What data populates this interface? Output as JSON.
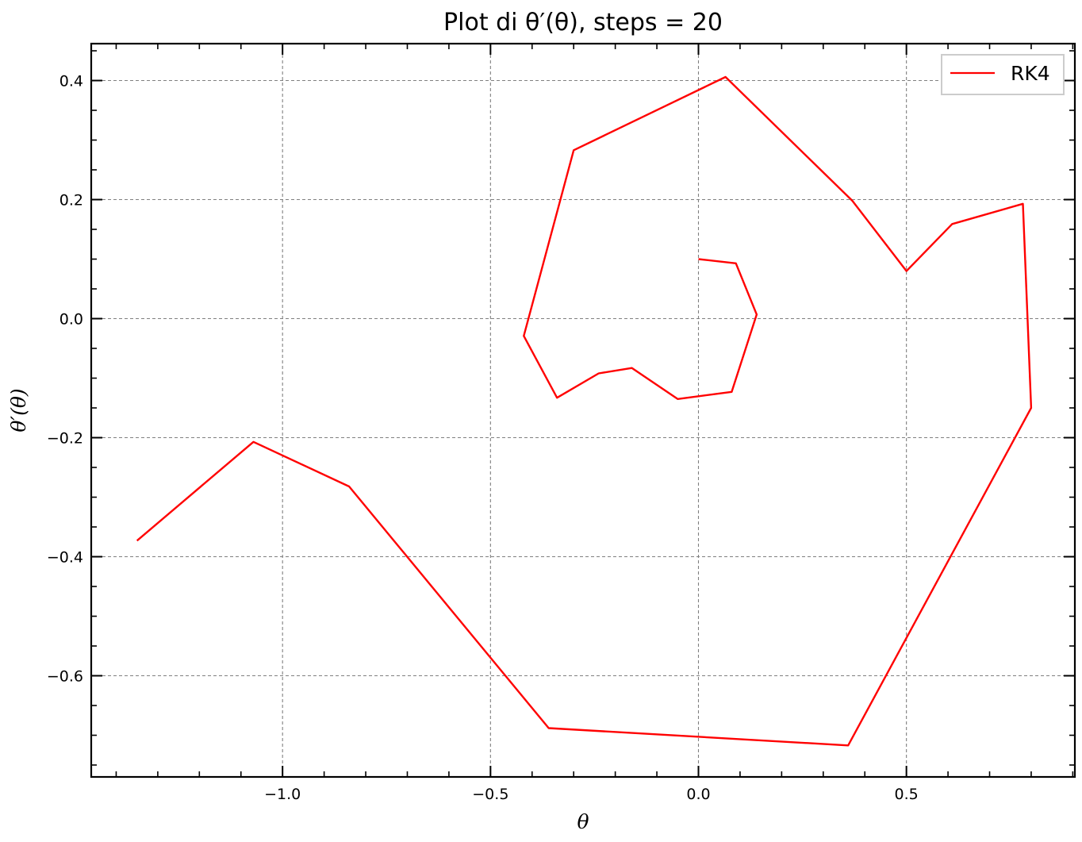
{
  "chart_data": {
    "type": "line",
    "title": "Plot di θ′(θ), steps = 20",
    "xlabel": "θ",
    "ylabel": "θ′(θ)",
    "xlim": [
      -1.46,
      0.905
    ],
    "ylim": [
      -0.77,
      0.462
    ],
    "x_ticks": [
      -1.0,
      -0.5,
      0.0,
      0.5
    ],
    "x_tick_labels": [
      "−1.0",
      "−0.5",
      "0.0",
      "0.5"
    ],
    "y_ticks": [
      0.4,
      0.2,
      0.0,
      -0.2,
      -0.4,
      -0.6
    ],
    "y_tick_labels": [
      "0.4",
      "0.2",
      "0.0",
      "−0.2",
      "−0.4",
      "−0.6"
    ],
    "grid": true,
    "legend_position": "top-right",
    "series": [
      {
        "name": "RK4",
        "color": "#ff0000",
        "x": [
          0.0,
          0.09,
          0.14,
          0.08,
          -0.05,
          -0.16,
          -0.24,
          -0.34,
          -0.42,
          -0.3,
          0.065,
          0.37,
          0.5,
          0.61,
          0.78,
          0.8,
          0.36,
          -0.36,
          -0.84,
          -1.07,
          -1.35
        ],
        "y": [
          0.1,
          0.093,
          0.007,
          -0.123,
          -0.135,
          -0.083,
          -0.092,
          -0.133,
          -0.029,
          0.283,
          0.406,
          0.198,
          0.08,
          0.159,
          0.193,
          -0.15,
          -0.717,
          -0.688,
          -0.282,
          -0.207,
          -0.373
        ]
      }
    ]
  }
}
